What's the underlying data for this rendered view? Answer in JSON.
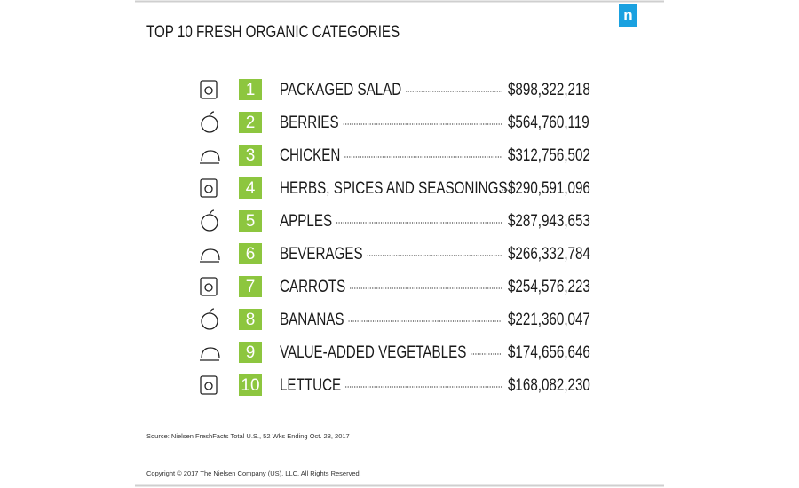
{
  "logo": "n",
  "title": "TOP 10 FRESH ORGANIC CATEGORIES",
  "items": [
    {
      "rank": "1",
      "label": "PACKAGED SALAD",
      "value": "$898,322,218"
    },
    {
      "rank": "2",
      "label": "BERRIES",
      "value": "$564,760,119"
    },
    {
      "rank": "3",
      "label": "CHICKEN",
      "value": "$312,756,502"
    },
    {
      "rank": "4",
      "label": "HERBS, SPICES AND SEASONINGS",
      "value": "$290,591,096"
    },
    {
      "rank": "5",
      "label": "APPLES",
      "value": "$287,943,653"
    },
    {
      "rank": "6",
      "label": "BEVERAGES",
      "value": "$266,332,784"
    },
    {
      "rank": "7",
      "label": "CARROTS",
      "value": "$254,576,223"
    },
    {
      "rank": "8",
      "label": "BANANAS",
      "value": "$221,360,047"
    },
    {
      "rank": "9",
      "label": "VALUE-ADDED VEGETABLES",
      "value": "$174,656,646"
    },
    {
      "rank": "10",
      "label": "LETTUCE",
      "value": "$168,082,230"
    }
  ],
  "source": "Source: Nielsen FreshFacts Total U.S., 52 Wks Ending Oct. 28, 2017",
  "copyright": "Copyright © 2017 The Nielsen Company (US), LLC. All Rights Reserved."
}
